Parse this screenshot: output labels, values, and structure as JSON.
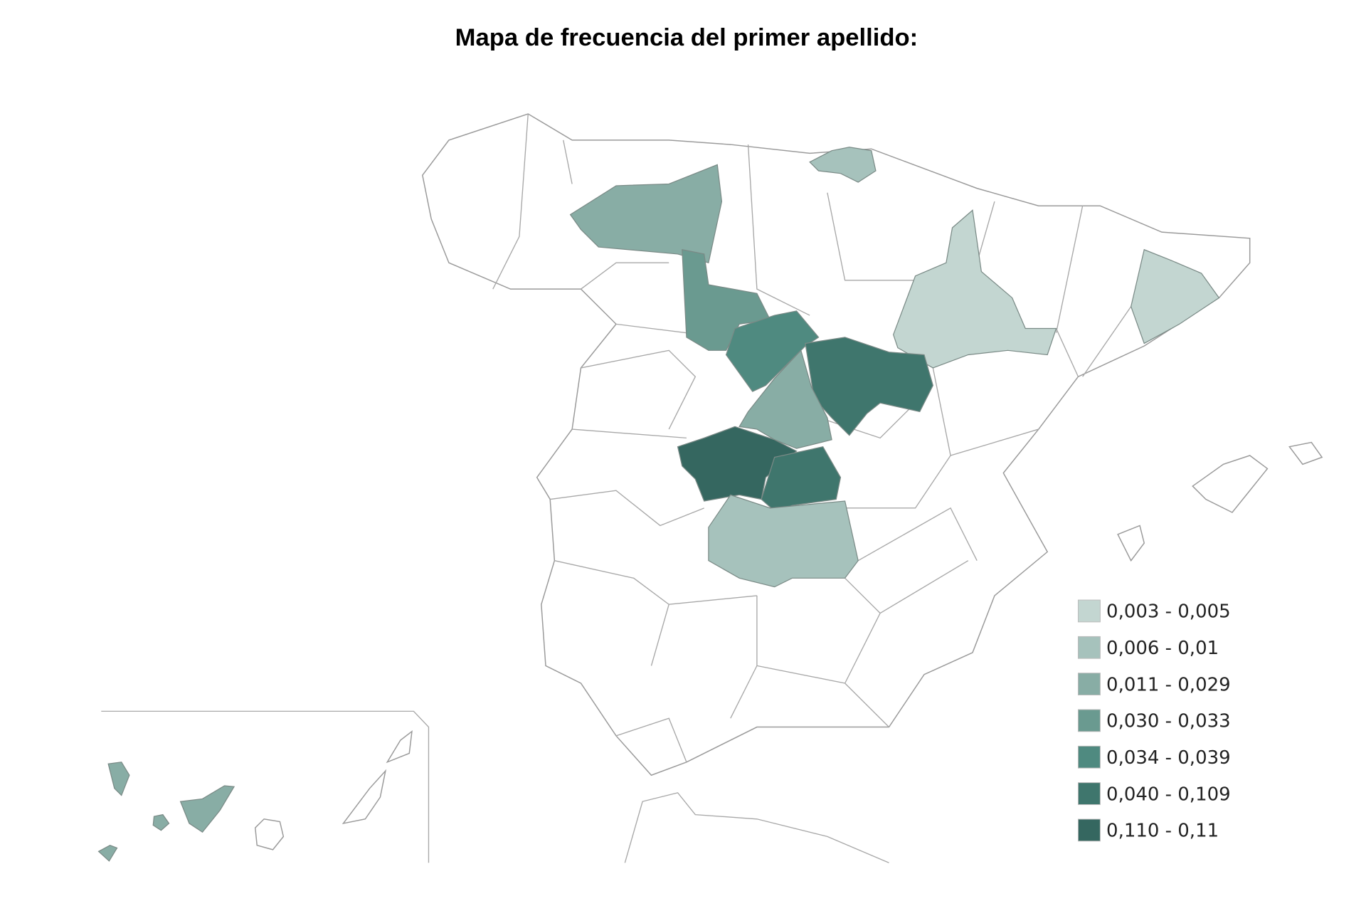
{
  "title": "Mapa de frecuencia del primer apellido:",
  "legend": [
    {
      "label": "0,003 - 0,005",
      "color": "#c3d6d1"
    },
    {
      "label": "0,006 - 0,01",
      "color": "#a6c2bc"
    },
    {
      "label": "0,011 - 0,029",
      "color": "#88ada5"
    },
    {
      "label": "0,030 - 0,033",
      "color": "#6a9a90"
    },
    {
      "label": "0,034 - 0,039",
      "color": "#4f8a80"
    },
    {
      "label": "0,040 - 0,109",
      "color": "#3f766d"
    },
    {
      "label": "0,110 - 0,11",
      "color": "#356760"
    }
  ]
}
